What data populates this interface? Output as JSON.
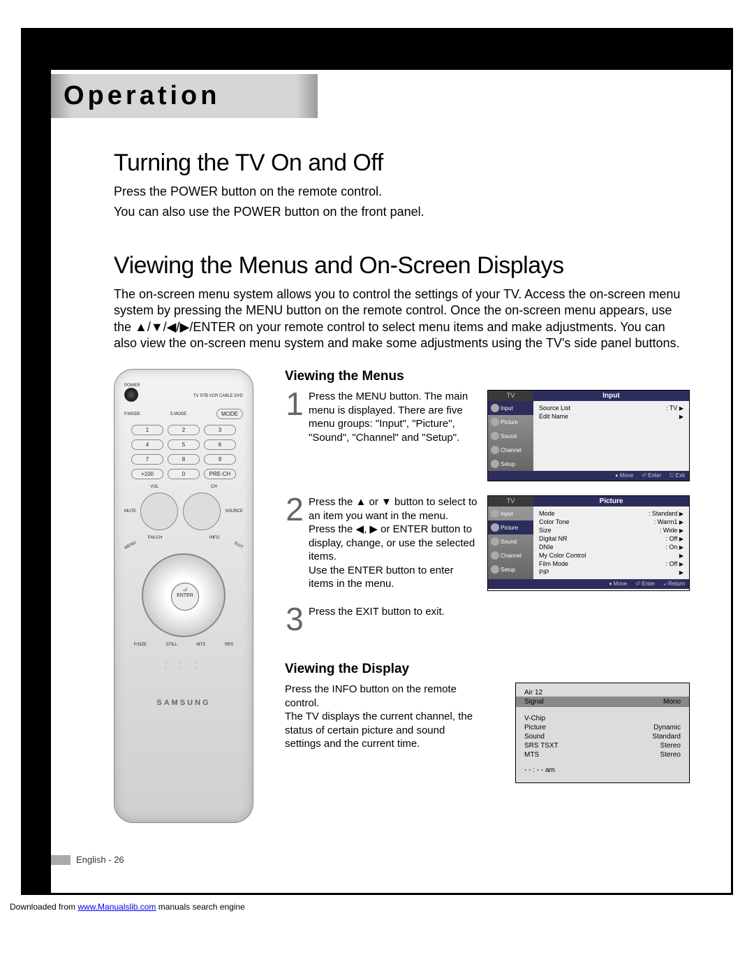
{
  "tab_title": "Operation",
  "s1_title": "Turning the TV On and Off",
  "s1_p1": "Press the POWER button on the remote control.",
  "s1_p2": "You can also use the POWER button on the front panel.",
  "s2_title": "Viewing the Menus and On-Screen Displays",
  "s2_p1": "The on-screen menu system allows you to control the settings of your TV. Access the on-screen menu system by pressing the MENU button on the remote control. Once the on-screen menu appears, use the ▲/▼/◀/▶/ENTER on your remote control to select menu items and make adjustments. You can also view the on-screen menu system and make some adjustments using the TV's side panel buttons.",
  "remote": {
    "power": "POWER",
    "top_labels": "TV  STB  VCR  CABLE  DVD",
    "row_labels": [
      "P.MODE",
      "S.MODE",
      "MODE"
    ],
    "keys": [
      "1",
      "2",
      "3",
      "4",
      "5",
      "6",
      "7",
      "8",
      "9",
      "+100",
      "0",
      "PRE-CH"
    ],
    "vol": "VOL",
    "ch": "CH",
    "mute": "MUTE",
    "source": "SOURCE",
    "favch": "FAV.CH",
    "info": "INFO",
    "menu": "MENU",
    "exit": "EXIT",
    "enter": "ENTER",
    "bottom": [
      "P.SIZE",
      "STILL",
      "MTS",
      "SRS"
    ],
    "brand": "SAMSUNG"
  },
  "sub1": "Viewing the Menus",
  "step1_text": "Press the MENU button. The main menu is displayed. There are five menu groups: \"Input\", \"Picture\", \"Sound\", \"Channel\" and \"Setup\".",
  "step2_text": "Press the ▲ or ▼ button to select to an item you want in the menu.\nPress the ◀, ▶ or ENTER button to display, change, or use the selected items.\nUse the ENTER button to enter items in the menu.",
  "step3_text": "Press the EXIT button to exit.",
  "osd1": {
    "tv": "TV",
    "title": "Input",
    "nav": [
      "Input",
      "Picture",
      "Sound",
      "Channel",
      "Setup"
    ],
    "items": [
      [
        "Source List",
        ": TV"
      ],
      [
        "Edit Name",
        ""
      ]
    ],
    "footer": [
      "♦ Move",
      "⏎ Enter",
      "⎋ Exit"
    ]
  },
  "osd2": {
    "tv": "TV",
    "title": "Picture",
    "nav": [
      "Input",
      "Picture",
      "Sound",
      "Channel",
      "Setup"
    ],
    "items": [
      [
        "Mode",
        ": Standard"
      ],
      [
        "Color Tone",
        ": Warm1"
      ],
      [
        "Size",
        ": Wide"
      ],
      [
        "Digital NR",
        ": Off"
      ],
      [
        "DNIe",
        ": On"
      ],
      [
        "My Color Control",
        ""
      ],
      [
        "Film Mode",
        ": Off"
      ],
      [
        "PIP",
        ""
      ]
    ],
    "footer": [
      "♦ Move",
      "⏎ Enter",
      "⤶ Return"
    ]
  },
  "sub2": "Viewing the Display",
  "display_p": "Press the INFO button on the remote control.\nThe TV displays the current channel, the status of certain picture and sound settings and the current time.",
  "info": {
    "ch": "Air  12",
    "signal": "Signal",
    "signal_v": "Mono",
    "rows": [
      [
        "V-Chip",
        ""
      ],
      [
        "Picture",
        "Dynamic"
      ],
      [
        "Sound",
        "Standard"
      ],
      [
        "SRS TSXT",
        "Stereo"
      ],
      [
        "MTS",
        "Stereo"
      ]
    ],
    "time": "- - : - -   am"
  },
  "page_footer": "English - 26",
  "download": "Downloaded from ",
  "download_link": "www.Manualslib.com",
  "download_tail": " manuals search engine"
}
